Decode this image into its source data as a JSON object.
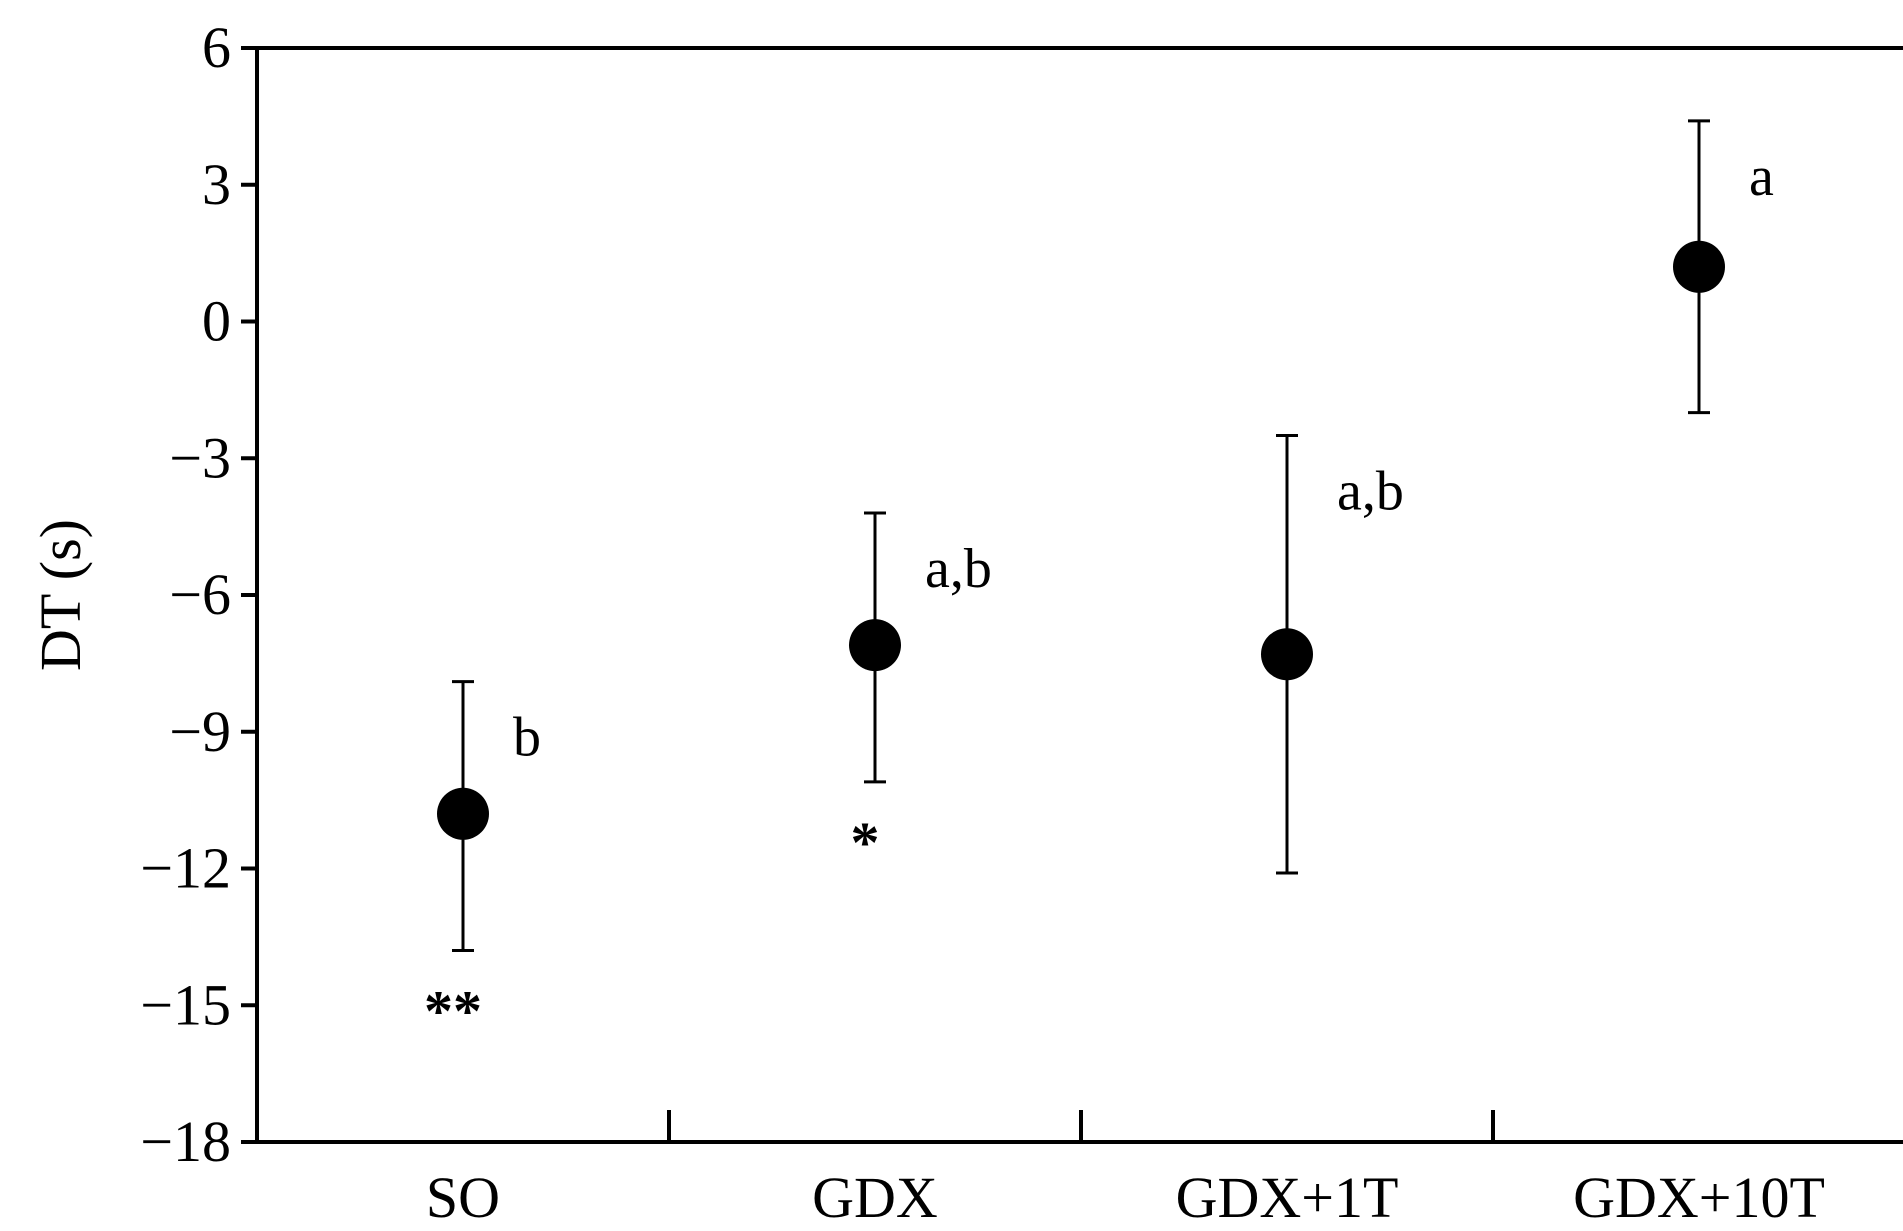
{
  "chart_data": {
    "type": "scatter",
    "title": "",
    "xlabel": "",
    "ylabel": "DT (s)",
    "ylim": [
      -18,
      6
    ],
    "yticks": [
      6,
      3,
      0,
      -3,
      -6,
      -9,
      -12,
      -15,
      -18
    ],
    "ytick_labels": [
      "6",
      "3",
      "0",
      "−3",
      "−6",
      "−9",
      "−12",
      "−15",
      "−18"
    ],
    "categories": [
      "SO",
      "GDX",
      "GDX+1T",
      "GDX+10T"
    ],
    "points": [
      {
        "category": "SO",
        "mean": -10.8,
        "upper": -7.9,
        "lower": -13.8,
        "group_label": "b",
        "significance": "**"
      },
      {
        "category": "GDX",
        "mean": -7.1,
        "upper": -4.2,
        "lower": -10.1,
        "group_label": "a,b",
        "significance": "*"
      },
      {
        "category": "GDX+1T",
        "mean": -7.3,
        "upper": -2.5,
        "lower": -12.1,
        "group_label": "a,b",
        "significance": ""
      },
      {
        "category": "GDX+10T",
        "mean": 1.2,
        "upper": 4.4,
        "lower": -2.0,
        "group_label": "a",
        "significance": ""
      }
    ],
    "grid": false,
    "legend": "none",
    "marker_color": "#000000"
  }
}
